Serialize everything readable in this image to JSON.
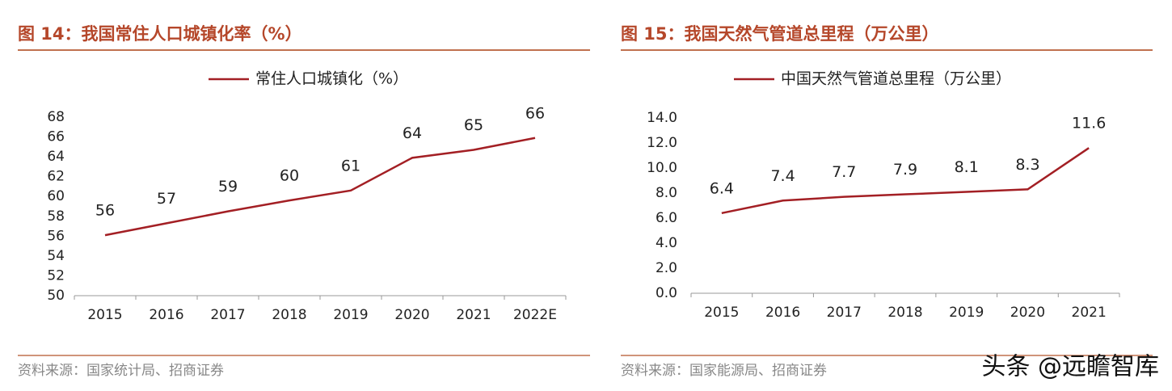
{
  "chart_data": [
    {
      "type": "line",
      "title": "图 14：我国常住人口城镇化率（%）",
      "categories": [
        "2015",
        "2016",
        "2017",
        "2018",
        "2019",
        "2020",
        "2021",
        "2022E"
      ],
      "series": [
        {
          "name": "常住人口城镇化（%）",
          "color": "#a31f24",
          "values": [
            56.1,
            57.3,
            58.5,
            59.6,
            60.6,
            63.9,
            64.7,
            65.9
          ],
          "value_labels": [
            "56",
            "57",
            "59",
            "60",
            "61",
            "64",
            "65",
            "66"
          ]
        }
      ],
      "ylim": [
        50,
        68
      ],
      "yticks": [
        50,
        52,
        54,
        56,
        58,
        60,
        62,
        64,
        66,
        68
      ],
      "source": "资料来源：国家统计局、招商证券"
    },
    {
      "type": "line",
      "title": "图 15：我国天然气管道总里程（万公里）",
      "categories": [
        "2015",
        "2016",
        "2017",
        "2018",
        "2019",
        "2020",
        "2021"
      ],
      "series": [
        {
          "name": "中国天然气管道总里程（万公里）",
          "color": "#a31f24",
          "values": [
            6.4,
            7.4,
            7.7,
            7.9,
            8.1,
            8.3,
            11.6
          ]
        }
      ],
      "ylim": [
        0,
        14
      ],
      "yticks": [
        {
          "value": 0,
          "label": "0.0"
        },
        {
          "value": 2,
          "label": "2.0"
        },
        {
          "value": 4,
          "label": "4.0"
        },
        {
          "value": 6,
          "label": "6.0"
        },
        {
          "value": 8,
          "label": "8.0"
        },
        {
          "value": 10,
          "label": "10.0"
        },
        {
          "value": 12,
          "label": "12.0"
        },
        {
          "value": 14,
          "label": "14.0"
        }
      ],
      "source": "资料来源：国家能源局、招商证券"
    }
  ],
  "watermark": "头条 @远瞻智库"
}
